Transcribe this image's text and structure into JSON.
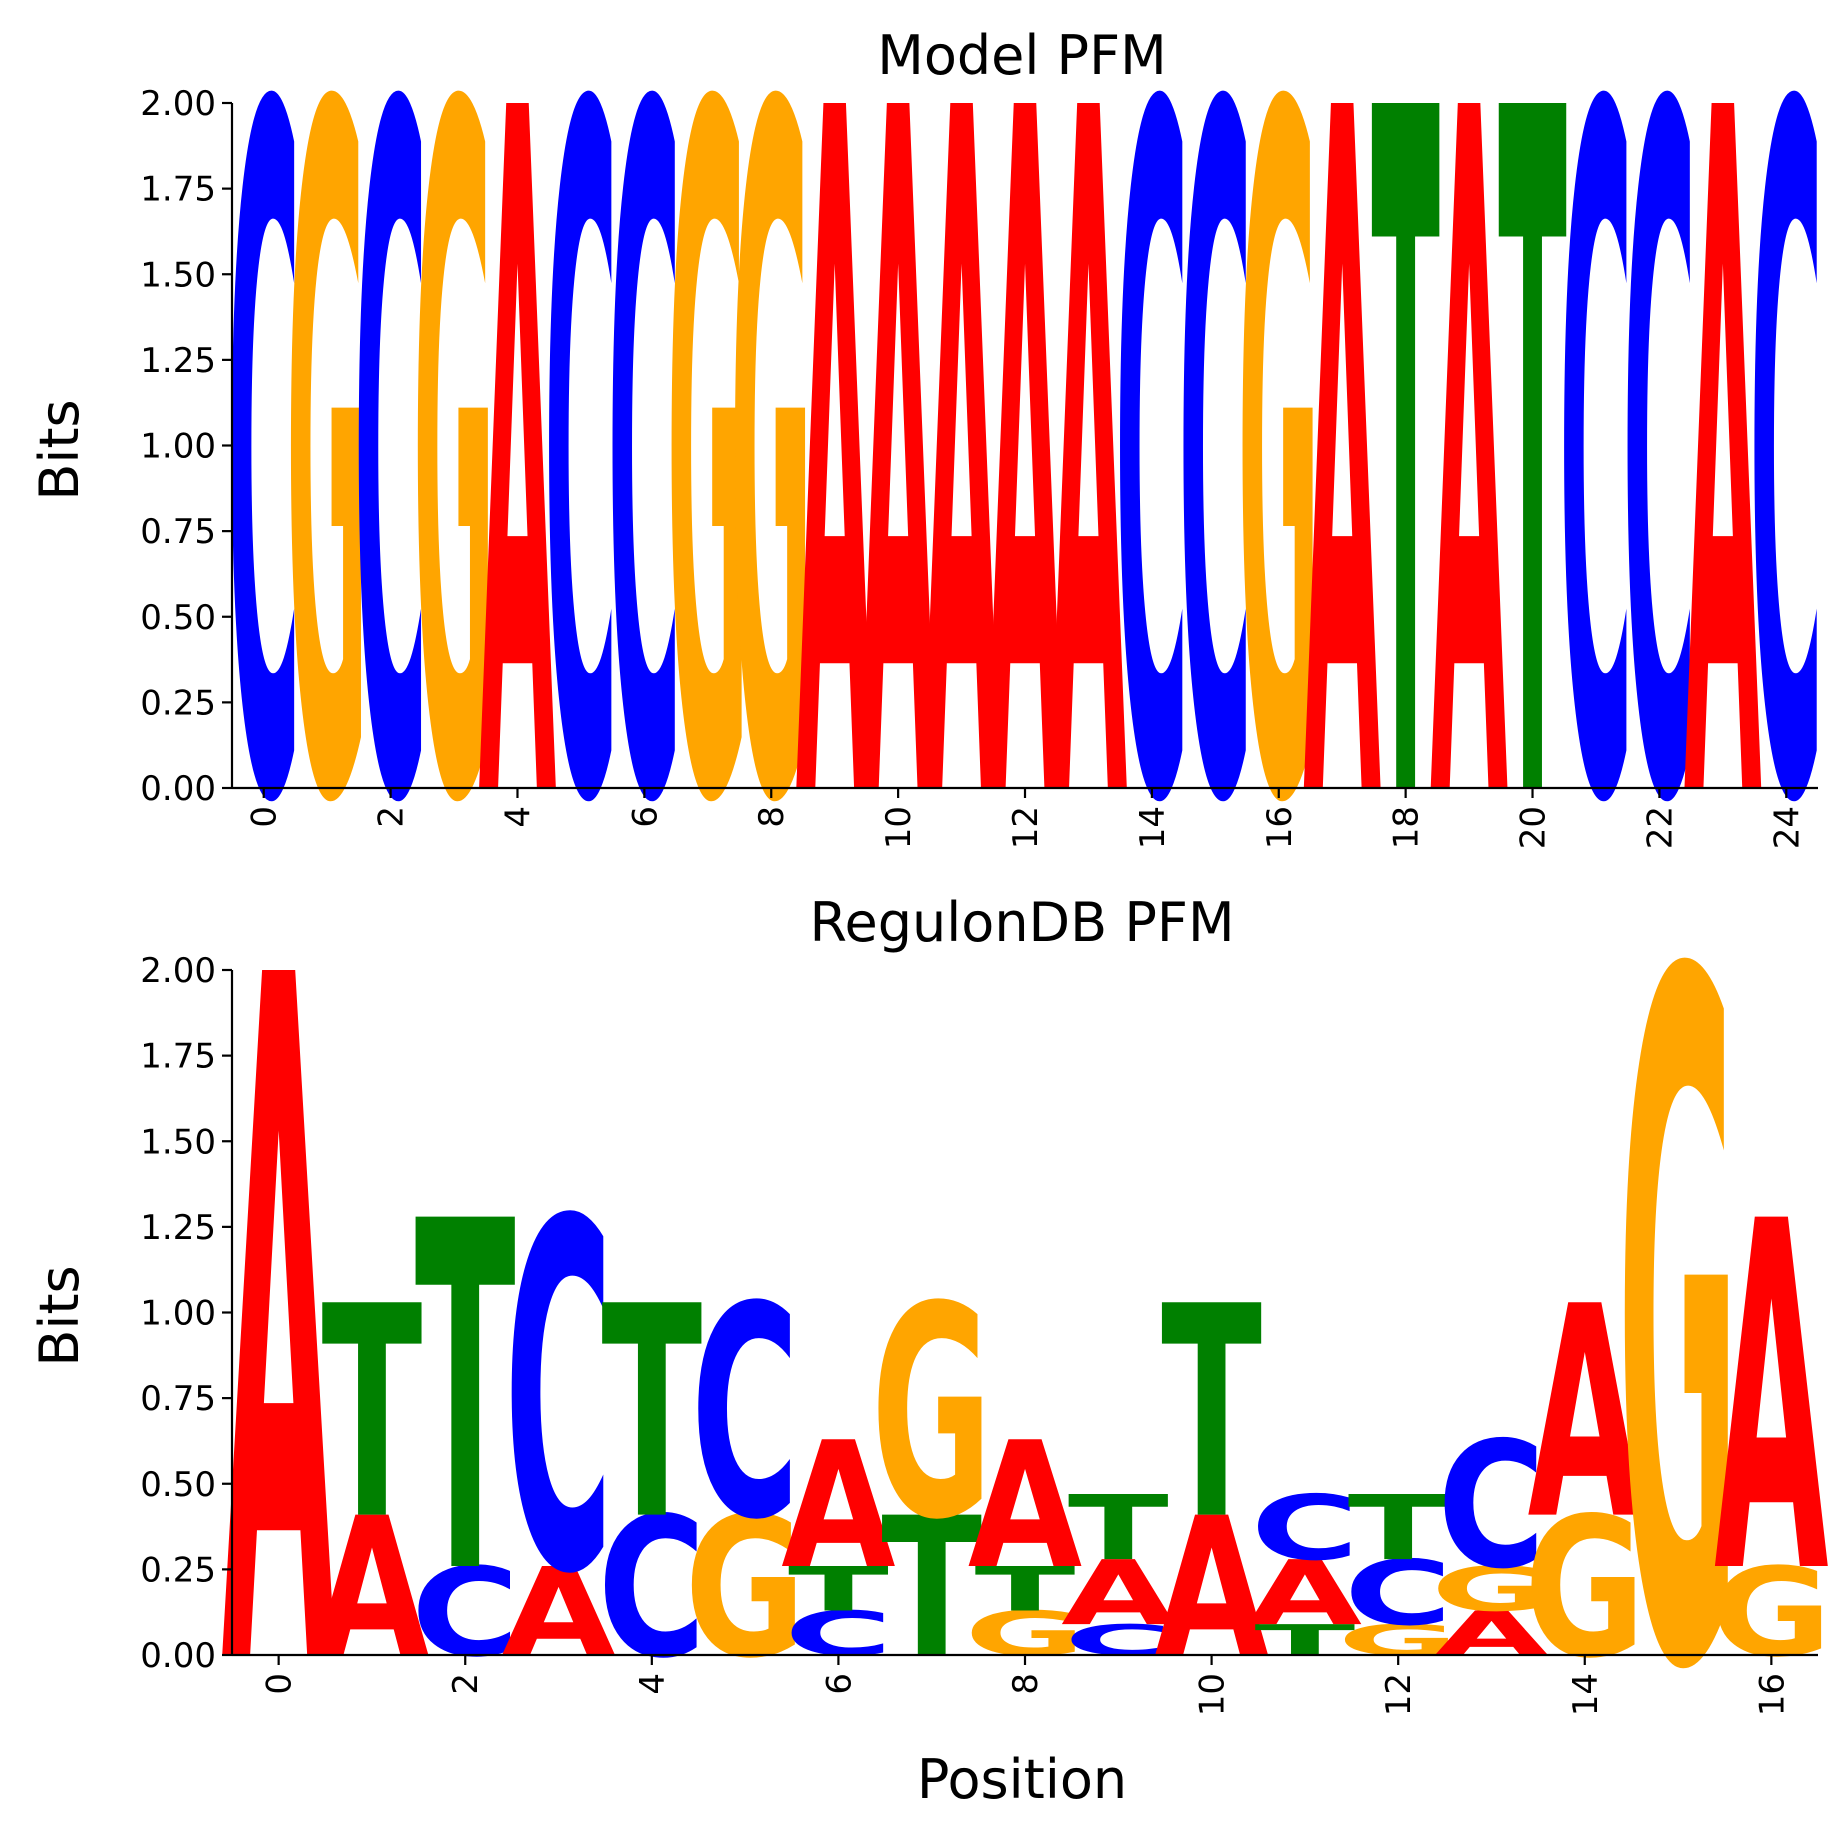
{
  "chart_data": [
    {
      "type": "sequence-logo",
      "title": "Model PFM",
      "xlabel": "",
      "ylabel": "Bits",
      "ylim": [
        0,
        2
      ],
      "xlim": [
        -0.5,
        24.5
      ],
      "yticks": [
        "0.00",
        "0.25",
        "0.50",
        "0.75",
        "1.00",
        "1.25",
        "1.50",
        "1.75",
        "2.00"
      ],
      "xticks": [
        0,
        2,
        4,
        6,
        8,
        10,
        12,
        14,
        16,
        18,
        20,
        22,
        24
      ],
      "grid": false,
      "positions": [
        [
          {
            "base": "C",
            "height": 2.0
          }
        ],
        [
          {
            "base": "G",
            "height": 2.0
          }
        ],
        [
          {
            "base": "C",
            "height": 2.0
          }
        ],
        [
          {
            "base": "G",
            "height": 2.0
          }
        ],
        [
          {
            "base": "A",
            "height": 2.0
          }
        ],
        [
          {
            "base": "C",
            "height": 2.0
          }
        ],
        [
          {
            "base": "C",
            "height": 2.0
          }
        ],
        [
          {
            "base": "G",
            "height": 2.0
          }
        ],
        [
          {
            "base": "G",
            "height": 2.0
          }
        ],
        [
          {
            "base": "A",
            "height": 2.0
          }
        ],
        [
          {
            "base": "A",
            "height": 2.0
          }
        ],
        [
          {
            "base": "A",
            "height": 2.0
          }
        ],
        [
          {
            "base": "A",
            "height": 2.0
          }
        ],
        [
          {
            "base": "A",
            "height": 2.0
          }
        ],
        [
          {
            "base": "C",
            "height": 2.0
          }
        ],
        [
          {
            "base": "C",
            "height": 2.0
          }
        ],
        [
          {
            "base": "G",
            "height": 2.0
          }
        ],
        [
          {
            "base": "A",
            "height": 2.0
          }
        ],
        [
          {
            "base": "T",
            "height": 2.0
          }
        ],
        [
          {
            "base": "A",
            "height": 2.0
          }
        ],
        [
          {
            "base": "T",
            "height": 2.0
          }
        ],
        [
          {
            "base": "C",
            "height": 2.0
          }
        ],
        [
          {
            "base": "C",
            "height": 2.0
          }
        ],
        [
          {
            "base": "A",
            "height": 2.0
          }
        ],
        [
          {
            "base": "C",
            "height": 2.0
          }
        ]
      ]
    },
    {
      "type": "sequence-logo",
      "title": "RegulonDB PFM",
      "xlabel": "Position",
      "ylabel": "Bits",
      "ylim": [
        0,
        2
      ],
      "xlim": [
        -0.5,
        16.5
      ],
      "yticks": [
        "0.00",
        "0.25",
        "0.50",
        "0.75",
        "1.00",
        "1.25",
        "1.50",
        "1.75",
        "2.00"
      ],
      "xticks": [
        0,
        2,
        4,
        6,
        8,
        10,
        12,
        14,
        16
      ],
      "grid": false,
      "positions": [
        [
          {
            "base": "A",
            "height": 2.0
          }
        ],
        [
          {
            "base": "A",
            "height": 0.41
          },
          {
            "base": "T",
            "height": 0.62
          }
        ],
        [
          {
            "base": "C",
            "height": 0.26
          },
          {
            "base": "T",
            "height": 1.02
          }
        ],
        [
          {
            "base": "A",
            "height": 0.26
          },
          {
            "base": "C",
            "height": 1.02
          }
        ],
        [
          {
            "base": "C",
            "height": 0.41
          },
          {
            "base": "T",
            "height": 0.62
          }
        ],
        [
          {
            "base": "G",
            "height": 0.41
          },
          {
            "base": "C",
            "height": 0.62
          }
        ],
        [
          {
            "base": "C",
            "height": 0.13
          },
          {
            "base": "T",
            "height": 0.13
          },
          {
            "base": "A",
            "height": 0.37
          }
        ],
        [
          {
            "base": "T",
            "height": 0.41
          },
          {
            "base": "G",
            "height": 0.62
          }
        ],
        [
          {
            "base": "G",
            "height": 0.13
          },
          {
            "base": "T",
            "height": 0.13
          },
          {
            "base": "A",
            "height": 0.37
          }
        ],
        [
          {
            "base": "C",
            "height": 0.09
          },
          {
            "base": "A",
            "height": 0.19
          },
          {
            "base": "T",
            "height": 0.19
          }
        ],
        [
          {
            "base": "A",
            "height": 0.41
          },
          {
            "base": "T",
            "height": 0.62
          }
        ],
        [
          {
            "base": "T",
            "height": 0.09
          },
          {
            "base": "A",
            "height": 0.19
          },
          {
            "base": "C",
            "height": 0.19
          }
        ],
        [
          {
            "base": "G",
            "height": 0.09
          },
          {
            "base": "C",
            "height": 0.19
          },
          {
            "base": "T",
            "height": 0.19
          }
        ],
        [
          {
            "base": "A",
            "height": 0.13
          },
          {
            "base": "G",
            "height": 0.13
          },
          {
            "base": "C",
            "height": 0.37
          }
        ],
        [
          {
            "base": "G",
            "height": 0.41
          },
          {
            "base": "A",
            "height": 0.62
          }
        ],
        [
          {
            "base": "G",
            "height": 2.0
          }
        ],
        [
          {
            "base": "G",
            "height": 0.26
          },
          {
            "base": "A",
            "height": 1.02
          }
        ]
      ]
    }
  ],
  "colors": {
    "A": "#ff0000",
    "C": "#0000ff",
    "G": "#ffa500",
    "T": "#008000"
  }
}
